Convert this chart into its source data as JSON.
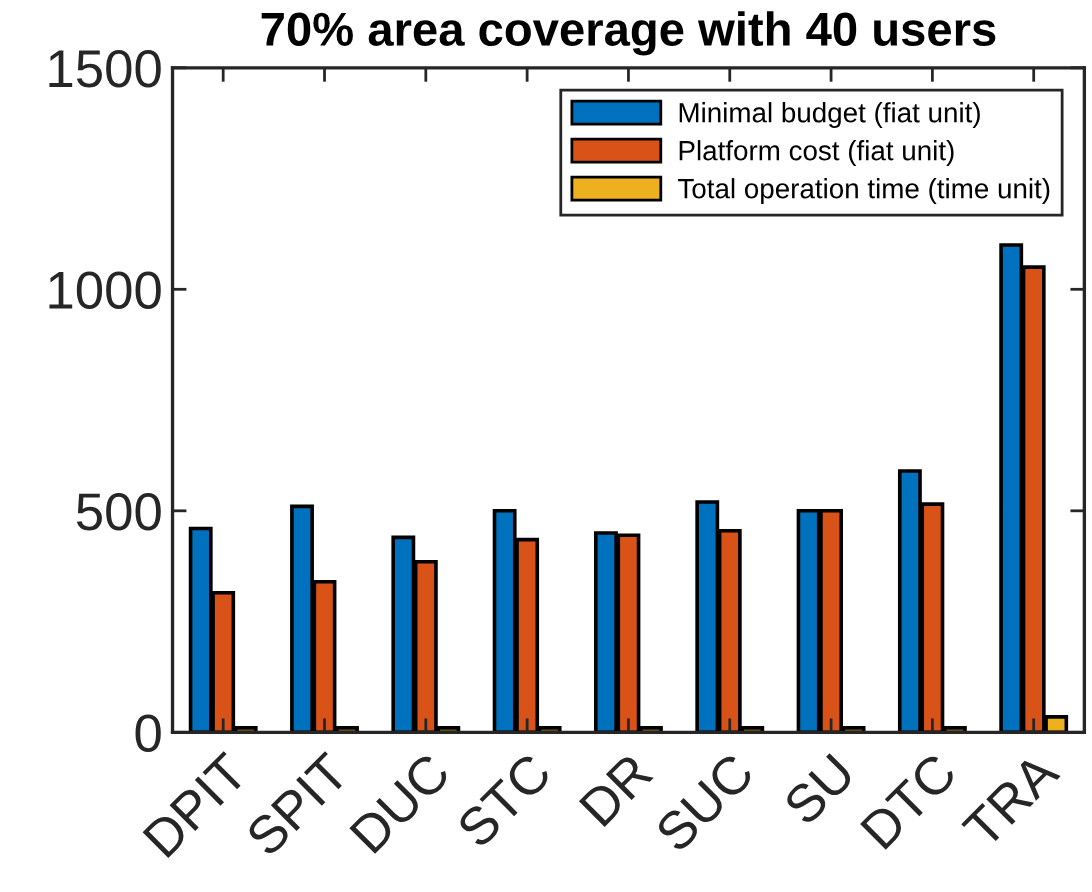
{
  "chart_data": {
    "type": "bar",
    "title": "70% area coverage with 40 users",
    "categories": [
      "DPIT",
      "SPIT",
      "DUC",
      "STC",
      "DR",
      "SUC",
      "SU",
      "DTC",
      "TRA"
    ],
    "series": [
      {
        "name": "Minimal budget (fiat unit)",
        "color": "#0072bd",
        "values": [
          460,
          510,
          440,
          500,
          450,
          520,
          500,
          590,
          1100
        ]
      },
      {
        "name": "Platform cost (fiat unit)",
        "color": "#d95319",
        "values": [
          315,
          340,
          385,
          435,
          445,
          455,
          500,
          515,
          1050
        ]
      },
      {
        "name": "Total operation time (time unit)",
        "color": "#edb120",
        "values": [
          10,
          10,
          10,
          10,
          10,
          10,
          10,
          10,
          35
        ]
      }
    ],
    "ylim": [
      0,
      1500
    ],
    "yticks": [
      0,
      500,
      1000,
      1500
    ],
    "grid": false,
    "legend": "top right"
  }
}
